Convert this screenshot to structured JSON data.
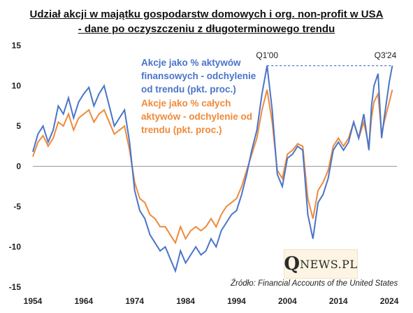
{
  "title_line1": "Udział akcji w majątku gospodarstw domowych i org. non-profit w USA",
  "title_line2": "- dane po oczyszczeniu z długoterminowego trendu",
  "source": "Źródło: Financial Accounts of the United States",
  "logo": {
    "big": "Q",
    "rest": "NEWS.PL"
  },
  "colors": {
    "blue": "#4a74c9",
    "orange": "#ef8a3a",
    "dashed": "#4a74c9"
  },
  "chart_data": {
    "type": "line",
    "xlabel": "",
    "ylabel": "",
    "xlim": [
      1954,
      2025.5
    ],
    "ylim": [
      -15,
      15
    ],
    "x_ticks": [
      "1954",
      "1964",
      "1974",
      "1984",
      "1994",
      "2004",
      "2014",
      "2024"
    ],
    "y_ticks": [
      "15",
      "10",
      "5",
      "0",
      "-5",
      "-10",
      "-15"
    ],
    "grid": false,
    "legend": "inside top-left, text labels colored by series",
    "annotations": [
      {
        "label": "Q1'00",
        "x": 2000.0,
        "y": 12.5
      },
      {
        "label": "Q3'24",
        "x": 2024.6,
        "y": 12.5
      }
    ],
    "reference_line": {
      "style": "dashed",
      "y": 12.5,
      "x_from": 2000.0,
      "x_to": 2024.6
    },
    "series": [
      {
        "name": "Akcje jako % aktywów finansowych - odchylenie od trendu (pkt. proc.)",
        "color": "#4a74c9",
        "points": [
          [
            1954.0,
            1.8
          ],
          [
            1955.0,
            4.0
          ],
          [
            1956.0,
            5.0
          ],
          [
            1957.0,
            3.0
          ],
          [
            1958.0,
            4.5
          ],
          [
            1959.0,
            7.5
          ],
          [
            1960.0,
            6.5
          ],
          [
            1961.0,
            8.5
          ],
          [
            1962.0,
            6.0
          ],
          [
            1963.0,
            8.0
          ],
          [
            1964.0,
            9.0
          ],
          [
            1965.0,
            9.8
          ],
          [
            1966.0,
            7.5
          ],
          [
            1967.0,
            9.0
          ],
          [
            1968.0,
            10.0
          ],
          [
            1969.0,
            7.5
          ],
          [
            1970.0,
            5.0
          ],
          [
            1971.0,
            6.0
          ],
          [
            1972.0,
            7.0
          ],
          [
            1973.0,
            3.0
          ],
          [
            1974.0,
            -3.0
          ],
          [
            1975.0,
            -5.5
          ],
          [
            1976.0,
            -6.5
          ],
          [
            1977.0,
            -8.5
          ],
          [
            1978.0,
            -9.5
          ],
          [
            1979.0,
            -10.5
          ],
          [
            1980.0,
            -10.0
          ],
          [
            1981.0,
            -11.5
          ],
          [
            1982.0,
            -13.0
          ],
          [
            1983.0,
            -10.5
          ],
          [
            1984.0,
            -12.0
          ],
          [
            1985.0,
            -11.0
          ],
          [
            1986.0,
            -10.0
          ],
          [
            1987.0,
            -11.0
          ],
          [
            1988.0,
            -10.5
          ],
          [
            1989.0,
            -9.0
          ],
          [
            1990.0,
            -10.0
          ],
          [
            1991.0,
            -8.0
          ],
          [
            1992.0,
            -7.0
          ],
          [
            1993.0,
            -6.0
          ],
          [
            1994.0,
            -5.5
          ],
          [
            1995.0,
            -3.5
          ],
          [
            1996.0,
            -1.0
          ],
          [
            1997.0,
            2.0
          ],
          [
            1998.0,
            4.5
          ],
          [
            1999.0,
            9.0
          ],
          [
            2000.0,
            12.5
          ],
          [
            2001.0,
            7.0
          ],
          [
            2002.0,
            -1.0
          ],
          [
            2003.0,
            -2.5
          ],
          [
            2004.0,
            1.0
          ],
          [
            2005.0,
            1.5
          ],
          [
            2006.0,
            2.5
          ],
          [
            2007.0,
            2.0
          ],
          [
            2008.0,
            -6.0
          ],
          [
            2009.0,
            -9.0
          ],
          [
            2010.0,
            -4.5
          ],
          [
            2011.0,
            -3.5
          ],
          [
            2012.0,
            -1.5
          ],
          [
            2013.0,
            2.0
          ],
          [
            2014.0,
            3.0
          ],
          [
            2015.0,
            2.0
          ],
          [
            2016.0,
            3.0
          ],
          [
            2017.0,
            5.5
          ],
          [
            2018.0,
            3.5
          ],
          [
            2019.0,
            6.5
          ],
          [
            2020.0,
            2.0
          ],
          [
            2020.5,
            7.5
          ],
          [
            2021.0,
            10.0
          ],
          [
            2021.8,
            11.5
          ],
          [
            2022.5,
            3.5
          ],
          [
            2023.0,
            6.0
          ],
          [
            2024.0,
            10.5
          ],
          [
            2024.6,
            12.5
          ]
        ]
      },
      {
        "name": "Akcje jako % całych aktywów - odchylenie od trendu (pkt. proc.)",
        "color": "#ef8a3a",
        "points": [
          [
            1954.0,
            1.2
          ],
          [
            1955.0,
            3.0
          ],
          [
            1956.0,
            3.8
          ],
          [
            1957.0,
            2.5
          ],
          [
            1958.0,
            3.5
          ],
          [
            1959.0,
            5.5
          ],
          [
            1960.0,
            5.0
          ],
          [
            1961.0,
            6.5
          ],
          [
            1962.0,
            4.5
          ],
          [
            1963.0,
            6.0
          ],
          [
            1964.0,
            6.5
          ],
          [
            1965.0,
            7.0
          ],
          [
            1966.0,
            5.5
          ],
          [
            1967.0,
            6.5
          ],
          [
            1968.0,
            7.0
          ],
          [
            1969.0,
            5.5
          ],
          [
            1970.0,
            4.0
          ],
          [
            1971.0,
            4.5
          ],
          [
            1972.0,
            5.0
          ],
          [
            1973.0,
            2.0
          ],
          [
            1974.0,
            -2.0
          ],
          [
            1975.0,
            -4.0
          ],
          [
            1976.0,
            -4.5
          ],
          [
            1977.0,
            -6.0
          ],
          [
            1978.0,
            -6.5
          ],
          [
            1979.0,
            -7.5
          ],
          [
            1980.0,
            -7.5
          ],
          [
            1981.0,
            -8.5
          ],
          [
            1982.0,
            -9.5
          ],
          [
            1983.0,
            -7.5
          ],
          [
            1984.0,
            -9.0
          ],
          [
            1985.0,
            -8.0
          ],
          [
            1986.0,
            -7.5
          ],
          [
            1987.0,
            -8.0
          ],
          [
            1988.0,
            -7.5
          ],
          [
            1989.0,
            -6.5
          ],
          [
            1990.0,
            -7.5
          ],
          [
            1991.0,
            -6.0
          ],
          [
            1992.0,
            -5.0
          ],
          [
            1993.0,
            -4.5
          ],
          [
            1994.0,
            -4.0
          ],
          [
            1995.0,
            -2.5
          ],
          [
            1996.0,
            -0.5
          ],
          [
            1997.0,
            1.5
          ],
          [
            1998.0,
            3.5
          ],
          [
            1999.0,
            7.0
          ],
          [
            2000.0,
            9.5
          ],
          [
            2001.0,
            5.5
          ],
          [
            2002.0,
            -0.5
          ],
          [
            2003.0,
            -1.5
          ],
          [
            2004.0,
            1.5
          ],
          [
            2005.0,
            2.0
          ],
          [
            2006.0,
            2.8
          ],
          [
            2007.0,
            2.5
          ],
          [
            2008.0,
            -4.0
          ],
          [
            2009.0,
            -6.5
          ],
          [
            2010.0,
            -3.0
          ],
          [
            2011.0,
            -2.0
          ],
          [
            2012.0,
            -0.5
          ],
          [
            2013.0,
            2.5
          ],
          [
            2014.0,
            3.5
          ],
          [
            2015.0,
            2.5
          ],
          [
            2016.0,
            3.5
          ],
          [
            2017.0,
            5.5
          ],
          [
            2018.0,
            3.5
          ],
          [
            2019.0,
            5.5
          ],
          [
            2020.0,
            2.5
          ],
          [
            2020.5,
            6.0
          ],
          [
            2021.0,
            8.0
          ],
          [
            2021.8,
            9.0
          ],
          [
            2022.5,
            4.0
          ],
          [
            2023.0,
            5.5
          ],
          [
            2024.0,
            8.0
          ],
          [
            2024.6,
            9.5
          ]
        ]
      }
    ]
  }
}
